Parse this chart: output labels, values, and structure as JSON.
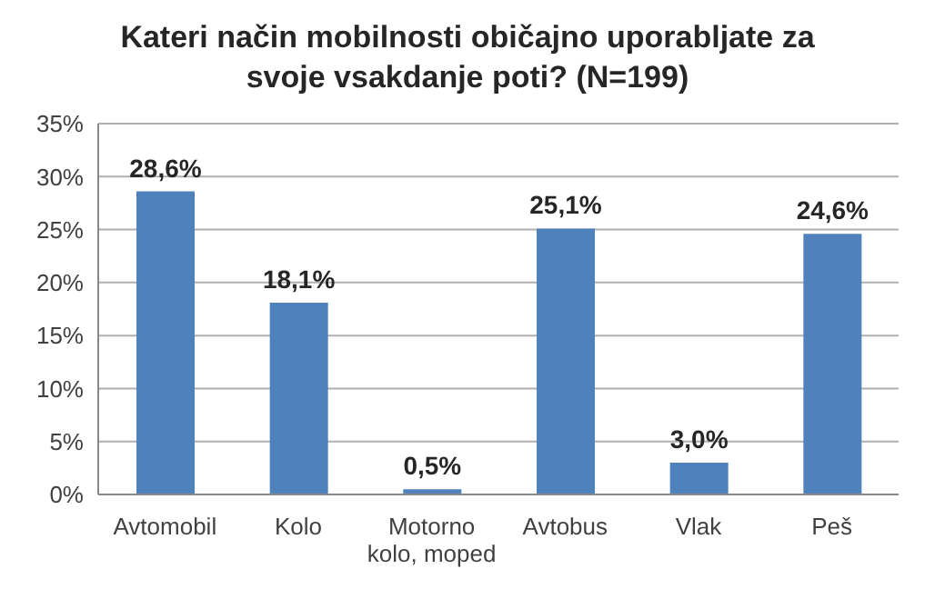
{
  "chart_data": {
    "type": "bar",
    "title": "Kateri način mobilnosti običajno uporabljate za svoje vsakdanje poti? (N=199)",
    "categories": [
      "Avtomobil",
      "Kolo",
      "Motorno kolo, moped",
      "Avtobus",
      "Vlak",
      "Peš"
    ],
    "values": [
      28.6,
      18.1,
      0.5,
      25.1,
      3.0,
      24.6
    ],
    "value_labels": [
      "28,6%",
      "18,1%",
      "0,5%",
      "25,1%",
      "3,0%",
      "24,6%"
    ],
    "color": "#4f81bd",
    "ylim": [
      0,
      35
    ],
    "yticks": [
      {
        "value": 0,
        "label": "0%"
      },
      {
        "value": 5,
        "label": "5%"
      },
      {
        "value": 10,
        "label": "10%"
      },
      {
        "value": 15,
        "label": "15%"
      },
      {
        "value": 20,
        "label": "20%"
      },
      {
        "value": 25,
        "label": "25%"
      },
      {
        "value": 30,
        "label": "30%"
      },
      {
        "value": 35,
        "label": "35%"
      }
    ],
    "grid": "y"
  }
}
